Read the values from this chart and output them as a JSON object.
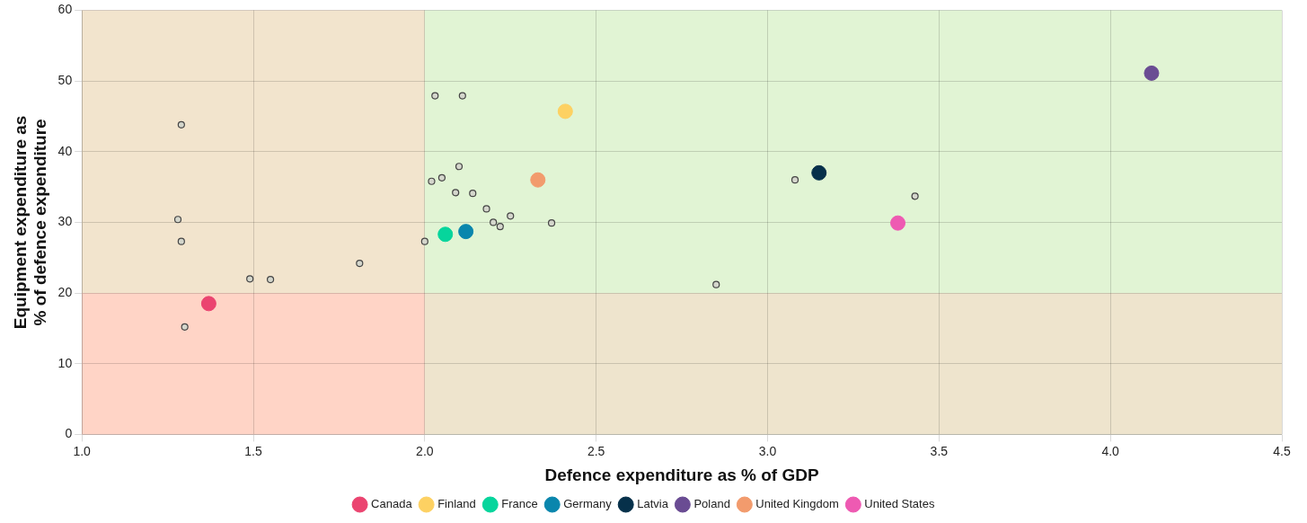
{
  "chart_data": {
    "type": "scatter",
    "xlabel": "Defence expenditure as % of GDP",
    "ylabel": "Equipment expenditure as\n% of defence expenditure",
    "xlim": [
      1,
      4.5
    ],
    "ylim": [
      0,
      60
    ],
    "xticks": [
      {
        "value": 1,
        "label": "1.0"
      },
      {
        "value": 1.5,
        "label": "1.5"
      },
      {
        "value": 2,
        "label": "2.0"
      },
      {
        "value": 2.5,
        "label": "2.5"
      },
      {
        "value": 3,
        "label": "3.0"
      },
      {
        "value": 3.5,
        "label": "3.5"
      },
      {
        "value": 4,
        "label": "4.0"
      },
      {
        "value": 4.5,
        "label": "4.5"
      }
    ],
    "yticks": [
      0,
      10,
      20,
      30,
      40,
      50,
      60
    ],
    "grid": true,
    "legend": "bottom",
    "marker": "circle",
    "bands": [
      {
        "axis": "x",
        "from": 1,
        "to": 2,
        "color": "#ffd5d2"
      },
      {
        "axis": "x",
        "from": 2,
        "to": 4.5,
        "color": "#dcf5e1"
      },
      {
        "axis": "y",
        "from": 0,
        "to": 20,
        "color": "#ffd3b9"
      },
      {
        "axis": "y",
        "from": 20,
        "to": 60,
        "color": "#e6f3c8"
      }
    ],
    "series": [
      {
        "color": "#d4d6cc",
        "x": [
          1.29,
          2.03,
          2.11,
          1.28,
          1.29,
          1.49,
          1.55,
          1.81,
          1.3,
          2.0,
          2.02,
          2.05,
          2.1,
          2.09,
          2.14,
          2.18,
          2.2,
          2.22,
          2.25,
          2.37,
          2.85,
          3.08,
          3.43
        ],
        "values": [
          43.8,
          47.9,
          47.9,
          30.4,
          27.3,
          22.0,
          21.9,
          24.2,
          15.2,
          27.3,
          35.8,
          36.3,
          37.9,
          34.2,
          34.1,
          31.9,
          30.0,
          29.4,
          30.9,
          29.9,
          21.2,
          36.0,
          33.7
        ]
      },
      {
        "name": "Canada",
        "color": "#eb4470",
        "x": [
          1.37
        ],
        "values": [
          18.5
        ]
      },
      {
        "name": "Finland",
        "color": "#fdd162",
        "x": [
          2.41
        ],
        "values": [
          45.7
        ]
      },
      {
        "name": "France",
        "color": "#06d59c",
        "x": [
          2.06
        ],
        "values": [
          28.3
        ]
      },
      {
        "name": "Germany",
        "color": "#0a86ad",
        "x": [
          2.12
        ],
        "values": [
          28.7
        ]
      },
      {
        "name": "Latvia",
        "color": "#06304a",
        "x": [
          3.15
        ],
        "values": [
          37.0
        ]
      },
      {
        "name": "Poland",
        "color": "#6a4c93",
        "x": [
          4.12
        ],
        "values": [
          51.1
        ]
      },
      {
        "name": "United Kingdom",
        "color": "#f29b6d",
        "x": [
          2.33
        ],
        "values": [
          36.0
        ]
      },
      {
        "name": "United States",
        "color": "#ee5ab2",
        "x": [
          3.38
        ],
        "values": [
          29.9
        ]
      }
    ]
  }
}
